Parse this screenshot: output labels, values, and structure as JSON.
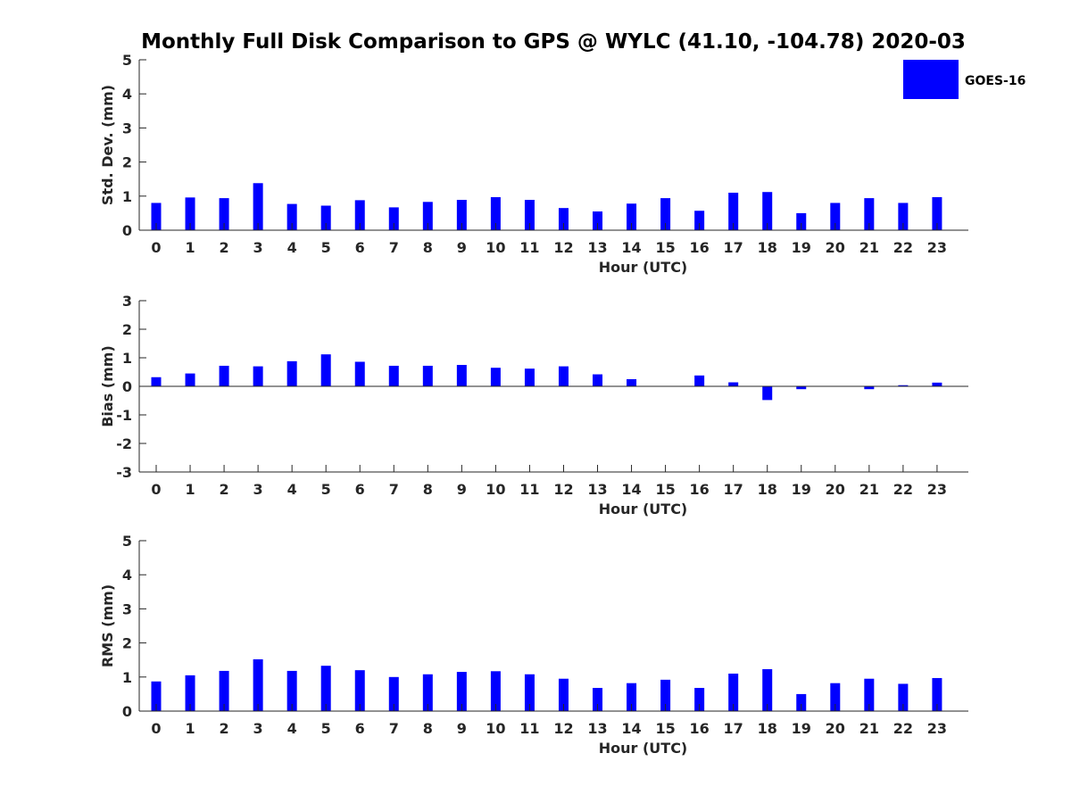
{
  "chart_data": {
    "type": "bar",
    "title": "Monthly Full Disk Comparison to GPS @ WYLC (41.10, -104.78) 2020-03",
    "legend": {
      "entries": [
        "GOES-16"
      ],
      "placement": "top-right"
    },
    "bar_color": "#0000ff",
    "axis_color": "#262626",
    "panels": [
      {
        "id": "stddev",
        "ylabel": "Std. Dev. (mm)",
        "xlabel": "Hour (UTC)",
        "ylim": [
          0,
          5
        ],
        "yticks": [
          0,
          1,
          2,
          3,
          4,
          5
        ],
        "categories": [
          "0",
          "1",
          "2",
          "3",
          "4",
          "5",
          "6",
          "7",
          "8",
          "9",
          "10",
          "11",
          "12",
          "13",
          "14",
          "15",
          "16",
          "17",
          "18",
          "19",
          "20",
          "21",
          "22",
          "23"
        ],
        "series": [
          {
            "name": "GOES-16",
            "values": [
              0.8,
              0.96,
              0.94,
              1.38,
              0.77,
              0.72,
              0.88,
              0.67,
              0.83,
              0.89,
              0.97,
              0.89,
              0.65,
              0.55,
              0.78,
              0.94,
              0.57,
              1.1,
              1.12,
              0.5,
              0.8,
              0.94,
              0.8,
              0.97
            ]
          }
        ]
      },
      {
        "id": "bias",
        "ylabel": "Bias (mm)",
        "xlabel": "Hour (UTC)",
        "ylim": [
          -3,
          3
        ],
        "yticks": [
          -3,
          -2,
          -1,
          0,
          1,
          2,
          3
        ],
        "categories": [
          "0",
          "1",
          "2",
          "3",
          "4",
          "5",
          "6",
          "7",
          "8",
          "9",
          "10",
          "11",
          "12",
          "13",
          "14",
          "15",
          "16",
          "17",
          "18",
          "19",
          "20",
          "21",
          "22",
          "23"
        ],
        "series": [
          {
            "name": "GOES-16",
            "values": [
              0.32,
              0.45,
              0.72,
              0.7,
              0.88,
              1.12,
              0.86,
              0.72,
              0.72,
              0.75,
              0.65,
              0.62,
              0.7,
              0.42,
              0.25,
              0.0,
              0.38,
              0.14,
              -0.48,
              -0.1,
              0.0,
              -0.1,
              0.04,
              0.13
            ]
          }
        ]
      },
      {
        "id": "rms",
        "ylabel": "RMS (mm)",
        "xlabel": "Hour (UTC)",
        "ylim": [
          0,
          5
        ],
        "yticks": [
          0,
          1,
          2,
          3,
          4,
          5
        ],
        "categories": [
          "0",
          "1",
          "2",
          "3",
          "4",
          "5",
          "6",
          "7",
          "8",
          "9",
          "10",
          "11",
          "12",
          "13",
          "14",
          "15",
          "16",
          "17",
          "18",
          "19",
          "20",
          "21",
          "22",
          "23"
        ],
        "series": [
          {
            "name": "GOES-16",
            "values": [
              0.87,
              1.05,
              1.18,
              1.52,
              1.18,
              1.33,
              1.2,
              1.0,
              1.08,
              1.15,
              1.17,
              1.08,
              0.95,
              0.68,
              0.82,
              0.92,
              0.68,
              1.1,
              1.23,
              0.5,
              0.82,
              0.95,
              0.8,
              0.97
            ]
          }
        ]
      }
    ]
  }
}
